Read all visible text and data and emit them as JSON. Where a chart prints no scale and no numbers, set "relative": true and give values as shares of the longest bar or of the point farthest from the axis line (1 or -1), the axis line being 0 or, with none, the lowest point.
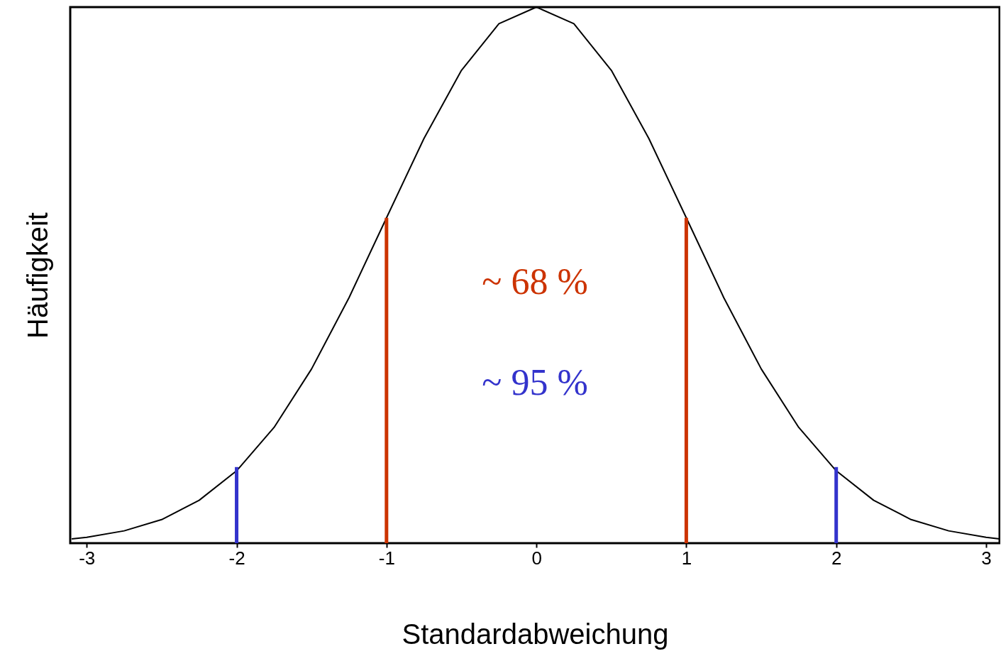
{
  "chart_data": {
    "type": "line",
    "relative": true,
    "xlabel": "Standardabweichung",
    "ylabel": "Häufigkeit",
    "xlim": [
      -3.11,
      3.09
    ],
    "xticks": [
      -3,
      -2,
      -1,
      0,
      1,
      2,
      3
    ],
    "tick_labels": "x",
    "grid": false,
    "marker": "none",
    "line_style": "solid",
    "series": [
      {
        "color": "#000000",
        "x": [
          -3.1,
          -3,
          -2.75,
          -2.5,
          -2.25,
          -2,
          -1.75,
          -1.5,
          -1.25,
          -1,
          -0.75,
          -0.5,
          -0.25,
          0,
          0.25,
          0.5,
          0.75,
          1,
          1.25,
          1.5,
          1.75,
          2,
          2.25,
          2.5,
          2.75,
          3,
          3.09
        ],
        "values": [
          0.008,
          0.011,
          0.023,
          0.044,
          0.08,
          0.135,
          0.216,
          0.325,
          0.458,
          0.607,
          0.755,
          0.882,
          0.969,
          1,
          0.969,
          0.882,
          0.755,
          0.607,
          0.458,
          0.325,
          0.216,
          0.135,
          0.08,
          0.044,
          0.023,
          0.011,
          0.008
        ]
      },
      {
        "color": "#cc3300",
        "x": [
          -1,
          -1
        ],
        "values": [
          0,
          0.607
        ]
      },
      {
        "color": "#cc3300",
        "x": [
          1,
          1
        ],
        "values": [
          0,
          0.607
        ]
      },
      {
        "color": "#3333cc",
        "x": [
          -2,
          -2
        ],
        "values": [
          0,
          0.142
        ]
      },
      {
        "color": "#3333cc",
        "x": [
          2,
          2
        ],
        "values": [
          0,
          0.142
        ]
      }
    ],
    "annotations": [
      "~ 68 %",
      "~ 95 %"
    ]
  }
}
